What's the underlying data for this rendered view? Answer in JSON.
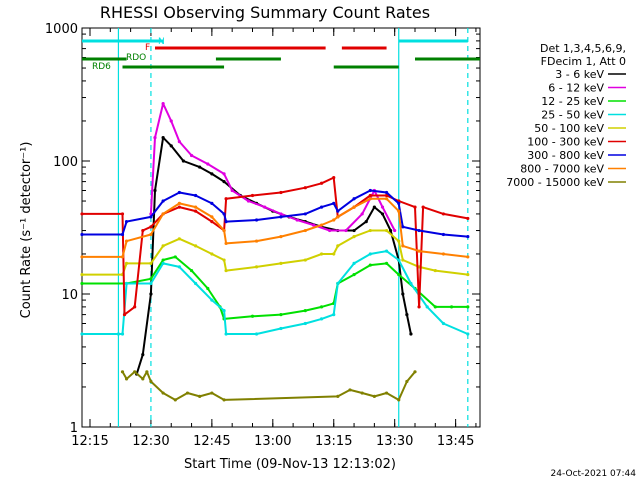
{
  "chart_data": {
    "type": "line",
    "title": "RHESSI Observing Summary Count Rates",
    "xlabel": "Start Time (09-Nov-13 12:13:02)",
    "ylabel": "Count Rate (s⁻¹ detector⁻¹)",
    "x_ticks": [
      "12:15",
      "12:30",
      "12:45",
      "13:00",
      "13:15",
      "13:30",
      "13:45"
    ],
    "y_ticks": [
      "1",
      "10",
      "100",
      "1000"
    ],
    "y_scale": "log",
    "ylim": [
      1,
      1000
    ],
    "xlim": [
      "12:13:02",
      "13:51:00"
    ],
    "legend_header": [
      "Det 1,3,4,5,6,9,",
      "FDecim 1, Att 0"
    ],
    "legend_position": "right",
    "bar_labels": {
      "N": "N",
      "F": "F",
      "RDO": "RDO",
      "RD6": "RD6"
    },
    "footer_date": "24-Oct-2021 07:44",
    "vertical_lines": [
      {
        "time": "12:22:00",
        "style": "solid",
        "color": "#00e0e0"
      },
      {
        "time": "12:30:00",
        "style": "dashed",
        "color": "#00e0e0"
      },
      {
        "time": "13:31:00",
        "style": "solid",
        "color": "#00e0e0"
      },
      {
        "time": "13:48:00",
        "style": "dashed",
        "color": "#00e0e0"
      }
    ],
    "flag_bars": {
      "N": {
        "color": "#00e0e0",
        "segments": [
          [
            "12:13:02",
            "12:30:00"
          ],
          [
            "12:30:00",
            "12:33:00"
          ],
          [
            "13:31:00",
            "13:48:00"
          ]
        ]
      },
      "F": {
        "color": "#e00000",
        "segments": [
          [
            "12:31:00",
            "13:13:00"
          ],
          [
            "13:17:00",
            "13:28:00"
          ]
        ]
      },
      "RDO": {
        "color": "#008000",
        "segments": [
          [
            "12:13:02",
            "12:24:00"
          ],
          [
            "12:46:00",
            "13:02:00"
          ],
          [
            "13:35:00",
            "13:51:00"
          ]
        ]
      },
      "RD6": {
        "color": "#008000",
        "segments": [
          [
            "12:23:00",
            "12:48:00"
          ],
          [
            "13:15:00",
            "13:31:00"
          ]
        ]
      }
    },
    "series": [
      {
        "name": "3 - 6 keV",
        "color": "#000000",
        "points": [
          [
            "12:26:30",
            2.5
          ],
          [
            "12:28:00",
            3.5
          ],
          [
            "12:30:00",
            10
          ],
          [
            "12:31:00",
            60
          ],
          [
            "12:33:00",
            150
          ],
          [
            "12:35:00",
            130
          ],
          [
            "12:38:00",
            100
          ],
          [
            "12:42:00",
            90
          ],
          [
            "12:45:00",
            80
          ],
          [
            "12:48:00",
            70
          ],
          [
            "12:52:00",
            55
          ],
          [
            "12:56:00",
            48
          ],
          [
            "13:00:00",
            42
          ],
          [
            "13:04:00",
            38
          ],
          [
            "13:08:00",
            35
          ],
          [
            "13:12:00",
            32
          ],
          [
            "13:16:00",
            30
          ],
          [
            "13:20:00",
            30
          ],
          [
            "13:23:00",
            35
          ],
          [
            "13:25:00",
            45
          ],
          [
            "13:27:00",
            40
          ],
          [
            "13:29:00",
            30
          ],
          [
            "13:31:00",
            18
          ],
          [
            "13:32:00",
            10
          ],
          [
            "13:33:00",
            7
          ],
          [
            "13:34:00",
            5
          ]
        ]
      },
      {
        "name": "6 - 12 keV",
        "color": "#e000e0",
        "points": [
          [
            "12:30:00",
            40
          ],
          [
            "12:31:00",
            150
          ],
          [
            "12:33:00",
            270
          ],
          [
            "12:35:00",
            200
          ],
          [
            "12:37:00",
            140
          ],
          [
            "12:40:00",
            110
          ],
          [
            "12:44:00",
            95
          ],
          [
            "12:48:00",
            80
          ],
          [
            "12:50:00",
            60
          ],
          [
            "12:54:00",
            50
          ],
          [
            "12:58:00",
            45
          ],
          [
            "13:02:00",
            40
          ],
          [
            "13:06:00",
            36
          ],
          [
            "13:10:00",
            33
          ],
          [
            "13:14:00",
            30
          ],
          [
            "13:18:00",
            30
          ],
          [
            "13:22:00",
            40
          ],
          [
            "13:25:00",
            60
          ],
          [
            "13:27:00",
            45
          ],
          [
            "13:30:00",
            30
          ]
        ]
      },
      {
        "name": "12 - 25 keV",
        "color": "#00e000",
        "points": [
          [
            "12:13:02",
            12
          ],
          [
            "12:24:00",
            12
          ],
          [
            "12:30:00",
            13
          ],
          [
            "12:33:00",
            18
          ],
          [
            "12:36:00",
            19
          ],
          [
            "12:40:00",
            15
          ],
          [
            "12:44:00",
            11
          ],
          [
            "12:47:00",
            8
          ],
          [
            "12:48:00",
            6.5
          ],
          [
            "12:55:00",
            6.8
          ],
          [
            "13:02:00",
            7
          ],
          [
            "13:08:00",
            7.5
          ],
          [
            "13:12:00",
            8
          ],
          [
            "13:15:00",
            8.5
          ],
          [
            "13:16:00",
            12
          ],
          [
            "13:20:00",
            14
          ],
          [
            "13:24:00",
            16.5
          ],
          [
            "13:28:00",
            17
          ],
          [
            "13:31:00",
            14
          ],
          [
            "13:35:00",
            11
          ],
          [
            "13:40:00",
            8
          ],
          [
            "13:44:00",
            8
          ],
          [
            "13:48:00",
            8
          ]
        ]
      },
      {
        "name": "25 - 50 keV",
        "color": "#00e0e0",
        "points": [
          [
            "12:13:02",
            5
          ],
          [
            "12:22:00",
            5
          ],
          [
            "12:23:00",
            5
          ],
          [
            "12:24:00",
            12
          ],
          [
            "12:30:00",
            12
          ],
          [
            "12:33:00",
            17
          ],
          [
            "12:37:00",
            16
          ],
          [
            "12:41:00",
            12
          ],
          [
            "12:45:00",
            9
          ],
          [
            "12:48:00",
            7.5
          ],
          [
            "12:48:30",
            5
          ],
          [
            "12:56:00",
            5
          ],
          [
            "13:02:00",
            5.5
          ],
          [
            "13:08:00",
            6
          ],
          [
            "13:12:00",
            6.5
          ],
          [
            "13:15:00",
            7
          ],
          [
            "13:16:00",
            12
          ],
          [
            "13:20:00",
            17
          ],
          [
            "13:24:00",
            20
          ],
          [
            "13:28:00",
            21
          ],
          [
            "13:31:00",
            18
          ],
          [
            "13:34:00",
            12
          ],
          [
            "13:38:00",
            8
          ],
          [
            "13:42:00",
            6
          ],
          [
            "13:48:00",
            5
          ]
        ]
      },
      {
        "name": "50 - 100 keV",
        "color": "#d0d000",
        "points": [
          [
            "12:13:02",
            14
          ],
          [
            "12:23:00",
            14
          ],
          [
            "12:24:00",
            17
          ],
          [
            "12:30:00",
            17
          ],
          [
            "12:33:00",
            23
          ],
          [
            "12:37:00",
            26
          ],
          [
            "12:41:00",
            23
          ],
          [
            "12:45:00",
            20
          ],
          [
            "12:48:00",
            18
          ],
          [
            "12:48:30",
            15
          ],
          [
            "12:56:00",
            16
          ],
          [
            "13:02:00",
            17
          ],
          [
            "13:08:00",
            18
          ],
          [
            "13:12:00",
            20
          ],
          [
            "13:15:00",
            20
          ],
          [
            "13:16:00",
            23
          ],
          [
            "13:20:00",
            27
          ],
          [
            "13:24:00",
            30
          ],
          [
            "13:28:00",
            30
          ],
          [
            "13:31:00",
            25
          ],
          [
            "13:32:00",
            18
          ],
          [
            "13:36:00",
            16
          ],
          [
            "13:40:00",
            15
          ],
          [
            "13:48:00",
            14
          ]
        ]
      },
      {
        "name": "100 - 300 keV",
        "color": "#e00000",
        "points": [
          [
            "12:13:02",
            40
          ],
          [
            "12:23:00",
            40
          ],
          [
            "12:23:30",
            7
          ],
          [
            "12:26:00",
            8
          ],
          [
            "12:28:00",
            30
          ],
          [
            "12:30:00",
            32
          ],
          [
            "12:33:00",
            40
          ],
          [
            "12:37:00",
            45
          ],
          [
            "12:41:00",
            42
          ],
          [
            "12:45:00",
            35
          ],
          [
            "12:48:00",
            30
          ],
          [
            "12:48:30",
            52
          ],
          [
            "12:55:00",
            55
          ],
          [
            "13:02:00",
            58
          ],
          [
            "13:08:00",
            63
          ],
          [
            "13:12:00",
            68
          ],
          [
            "13:15:00",
            75
          ],
          [
            "13:16:00",
            38
          ],
          [
            "13:20:00",
            45
          ],
          [
            "13:24:00",
            55
          ],
          [
            "13:28:00",
            55
          ],
          [
            "13:31:00",
            50
          ],
          [
            "13:35:00",
            45
          ],
          [
            "13:36:00",
            8
          ],
          [
            "13:37:00",
            45
          ],
          [
            "13:42:00",
            40
          ],
          [
            "13:48:00",
            37
          ]
        ]
      },
      {
        "name": "300 - 800 keV",
        "color": "#0000e0",
        "points": [
          [
            "12:13:02",
            28
          ],
          [
            "12:23:00",
            28
          ],
          [
            "12:24:00",
            35
          ],
          [
            "12:30:00",
            38
          ],
          [
            "12:33:00",
            50
          ],
          [
            "12:37:00",
            58
          ],
          [
            "12:41:00",
            55
          ],
          [
            "12:45:00",
            48
          ],
          [
            "12:48:00",
            40
          ],
          [
            "12:48:30",
            35
          ],
          [
            "12:56:00",
            36
          ],
          [
            "13:02:00",
            38
          ],
          [
            "13:08:00",
            40
          ],
          [
            "13:12:00",
            45
          ],
          [
            "13:15:00",
            48
          ],
          [
            "13:16:00",
            42
          ],
          [
            "13:20:00",
            52
          ],
          [
            "13:24:00",
            60
          ],
          [
            "13:28:00",
            58
          ],
          [
            "13:31:00",
            48
          ],
          [
            "13:32:00",
            32
          ],
          [
            "13:36:00",
            30
          ],
          [
            "13:42:00",
            28
          ],
          [
            "13:48:00",
            27
          ]
        ]
      },
      {
        "name": "800 - 7000 keV",
        "color": "#ff8000",
        "points": [
          [
            "12:13:02",
            19
          ],
          [
            "12:23:00",
            19
          ],
          [
            "12:24:00",
            25
          ],
          [
            "12:30:00",
            28
          ],
          [
            "12:33:00",
            40
          ],
          [
            "12:37:00",
            48
          ],
          [
            "12:41:00",
            45
          ],
          [
            "12:45:00",
            38
          ],
          [
            "12:48:00",
            30
          ],
          [
            "12:48:30",
            24
          ],
          [
            "12:56:00",
            25
          ],
          [
            "13:02:00",
            27
          ],
          [
            "13:08:00",
            30
          ],
          [
            "13:12:00",
            33
          ],
          [
            "13:15:00",
            36
          ],
          [
            "13:16:00",
            38
          ],
          [
            "13:20:00",
            45
          ],
          [
            "13:24:00",
            52
          ],
          [
            "13:28:00",
            52
          ],
          [
            "13:31:00",
            42
          ],
          [
            "13:32:00",
            23
          ],
          [
            "13:36:00",
            21
          ],
          [
            "13:42:00",
            20
          ],
          [
            "13:48:00",
            19
          ]
        ]
      },
      {
        "name": "7000 - 15000 keV",
        "color": "#808000",
        "points": [
          [
            "12:23:00",
            2.6
          ],
          [
            "12:24:00",
            2.3
          ],
          [
            "12:26:00",
            2.6
          ],
          [
            "12:28:00",
            2.3
          ],
          [
            "12:29:00",
            2.6
          ],
          [
            "12:30:00",
            2.2
          ],
          [
            "12:33:00",
            1.8
          ],
          [
            "12:36:00",
            1.6
          ],
          [
            "12:39:00",
            1.8
          ],
          [
            "12:42:00",
            1.7
          ],
          [
            "12:45:00",
            1.8
          ],
          [
            "12:48:00",
            1.6
          ],
          [
            "13:16:00",
            1.7
          ],
          [
            "13:19:00",
            1.9
          ],
          [
            "13:22:00",
            1.8
          ],
          [
            "13:25:00",
            1.7
          ],
          [
            "13:28:00",
            1.8
          ],
          [
            "13:31:00",
            1.6
          ],
          [
            "13:33:00",
            2.2
          ],
          [
            "13:35:00",
            2.6
          ]
        ]
      }
    ]
  }
}
